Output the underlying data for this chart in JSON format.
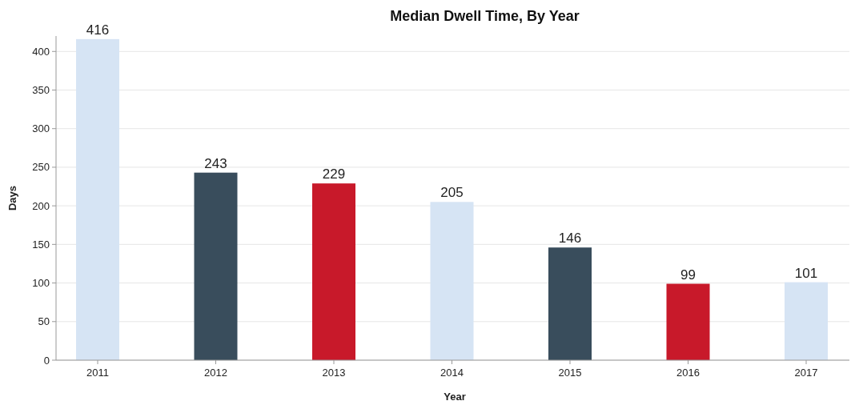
{
  "chart_data": {
    "type": "bar",
    "title": "Median Dwell Time,  By Year",
    "xlabel": "Year",
    "ylabel": "Days",
    "categories": [
      "2011",
      "2012",
      "2013",
      "2014",
      "2015",
      "2016",
      "2017"
    ],
    "values": [
      416,
      243,
      229,
      205,
      146,
      99,
      101
    ],
    "colors": [
      "#d6e4f4",
      "#394d5c",
      "#c8192a",
      "#d6e4f4",
      "#394d5c",
      "#c8192a",
      "#d6e4f4"
    ],
    "ylim": [
      0,
      420
    ],
    "yticks": [
      0,
      50,
      100,
      150,
      200,
      250,
      300,
      350,
      400
    ],
    "grid": "y",
    "data_labels": true
  }
}
